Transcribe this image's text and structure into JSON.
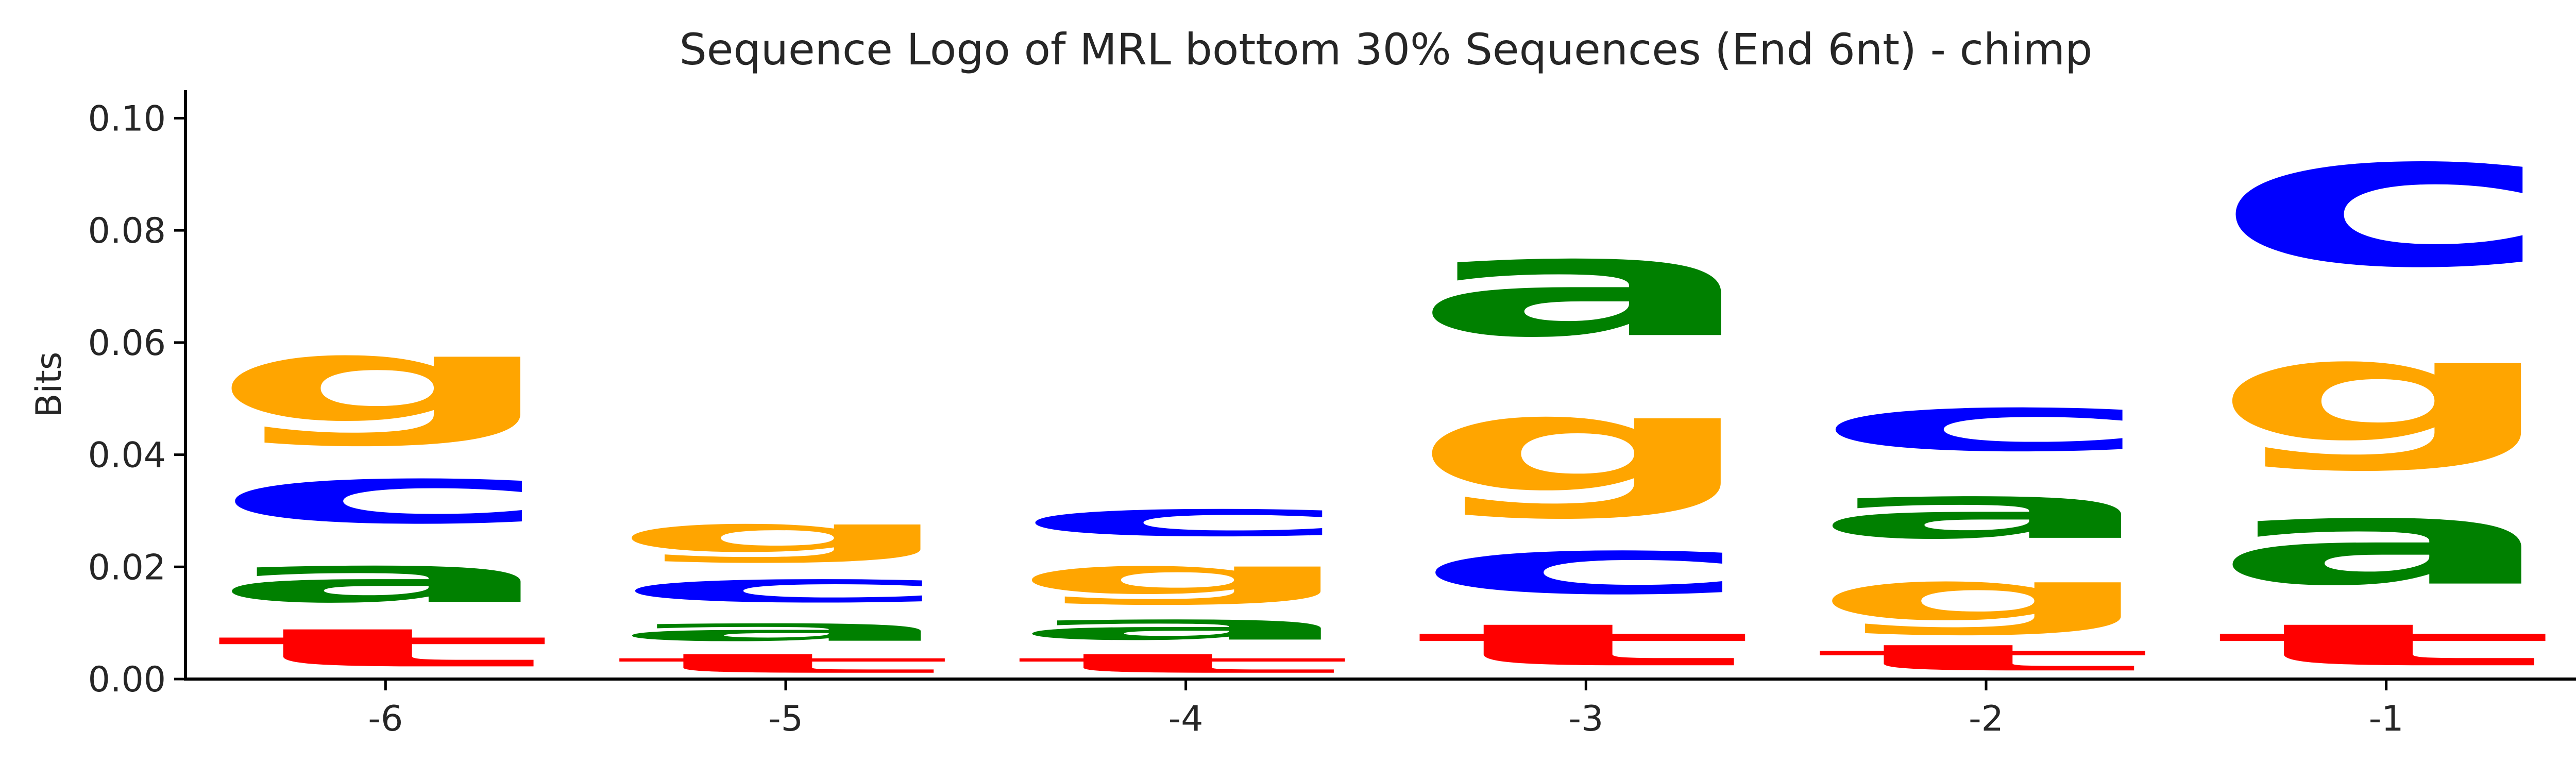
{
  "chart_data": {
    "type": "sequence-logo",
    "title": "Sequence Logo of MRL bottom 30% Sequences (End 6nt) - chimp",
    "xlabel": "",
    "ylabel": "Bits",
    "ylim": [
      0,
      0.105
    ],
    "yticks": [
      "0.00",
      "0.02",
      "0.04",
      "0.06",
      "0.08",
      "0.10"
    ],
    "yticks_values": [
      0,
      0.02,
      0.04,
      0.06,
      0.08,
      0.1
    ],
    "categories": [
      "-6",
      "-5",
      "-4",
      "-3",
      "-2",
      "-1"
    ],
    "grid": false,
    "colors": {
      "a": "#008000",
      "c": "#0000ff",
      "g": "#ffa500",
      "t": "#ff0000"
    },
    "positions": [
      {
        "pos": "-6",
        "stack": [
          {
            "letter": "t",
            "bits": 0.011
          },
          {
            "letter": "a",
            "bits": 0.0135
          },
          {
            "letter": "c",
            "bits": 0.0165
          },
          {
            "letter": "g",
            "bits": 0.0245
          }
        ]
      },
      {
        "pos": "-5",
        "stack": [
          {
            "letter": "t",
            "bits": 0.0055
          },
          {
            "letter": "a",
            "bits": 0.0065
          },
          {
            "letter": "c",
            "bits": 0.0085
          },
          {
            "letter": "g",
            "bits": 0.0105
          }
        ]
      },
      {
        "pos": "-4",
        "stack": [
          {
            "letter": "t",
            "bits": 0.0055
          },
          {
            "letter": "a",
            "bits": 0.0075
          },
          {
            "letter": "g",
            "bits": 0.0105
          },
          {
            "letter": "c",
            "bits": 0.01
          }
        ]
      },
      {
        "pos": "-3",
        "stack": [
          {
            "letter": "t",
            "bits": 0.012
          },
          {
            "letter": "c",
            "bits": 0.016
          },
          {
            "letter": "g",
            "bits": 0.0275
          },
          {
            "letter": "a",
            "bits": 0.0285
          }
        ]
      },
      {
        "pos": "-2",
        "stack": [
          {
            "letter": "t",
            "bits": 0.0075
          },
          {
            "letter": "g",
            "bits": 0.0145
          },
          {
            "letter": "a",
            "bits": 0.0155
          },
          {
            "letter": "c",
            "bits": 0.016
          }
        ]
      },
      {
        "pos": "-1",
        "stack": [
          {
            "letter": "t",
            "bits": 0.012
          },
          {
            "letter": "a",
            "bits": 0.0245
          },
          {
            "letter": "g",
            "bits": 0.0295
          },
          {
            "letter": "c",
            "bits": 0.0385
          }
        ]
      }
    ]
  }
}
